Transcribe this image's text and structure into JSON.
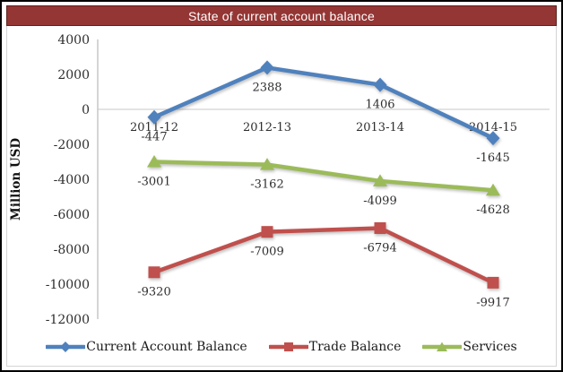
{
  "title": "State of current account balance",
  "chart_data": {
    "type": "line",
    "categories": [
      "2011-12",
      "2012-13",
      "2013-14",
      "2014-15"
    ],
    "series": [
      {
        "name": "Current Account Balance",
        "values": [
          -447,
          2388,
          1406,
          -1645
        ],
        "color": "#4F81BD",
        "marker": "diamond"
      },
      {
        "name": "Trade Balance",
        "values": [
          -9320,
          -7009,
          -6794,
          -9917
        ],
        "color": "#C0504D",
        "marker": "square"
      },
      {
        "name": "Services",
        "values": [
          -3001,
          -3162,
          -4099,
          -4628
        ],
        "color": "#9BBB59",
        "marker": "triangle"
      }
    ],
    "title": "State of current account balance",
    "xlabel": "",
    "ylabel": "Million USD",
    "ylim": [
      -12000,
      4000
    ],
    "ytick_step": 2000,
    "data_labels": true,
    "grid": false,
    "legend_position": "bottom"
  },
  "colors": {
    "title_bg": "#943634",
    "title_border": "#5e2120",
    "title_text": "#ffffff",
    "axis_line": "#c3c3c3",
    "zero_line": "#d2d2d2",
    "frame_border": "#d4d4d4",
    "text": "#2e2e2e",
    "outer_border": "#000000"
  }
}
